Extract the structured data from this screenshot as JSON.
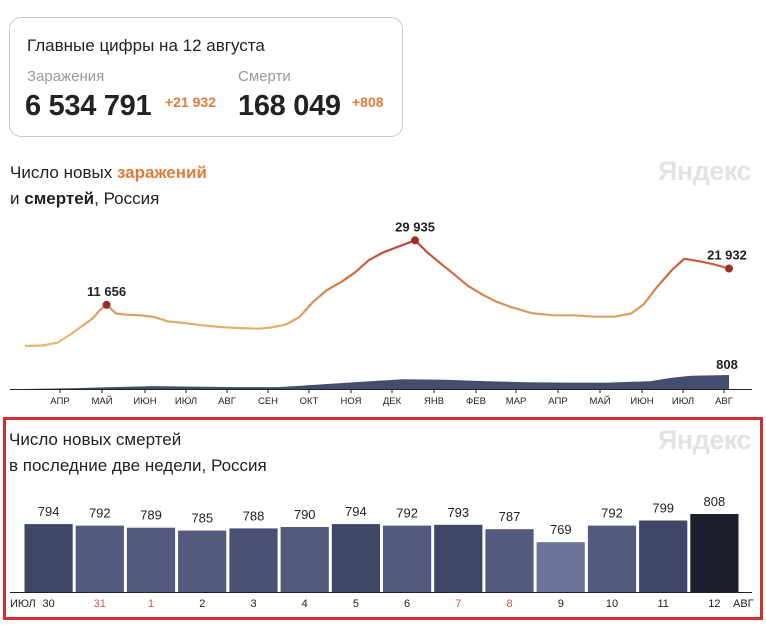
{
  "summary": {
    "title": "Главные цифры на 12 августа",
    "infections_label": "Заражения",
    "infections_value": "6 534 791",
    "infections_delta": "+21 932",
    "deaths_label": "Смерти",
    "deaths_value": "168 049",
    "deaths_delta": "+808"
  },
  "chart1": {
    "title_part1": "Число новых ",
    "title_highlight": "заражений",
    "title_part2": "и ",
    "title_bold": "смертей",
    "title_part3": ", Россия",
    "watermark": "Яндекс"
  },
  "chart2": {
    "title_line1": "Число новых смертей",
    "title_line2": "в последние две недели, Россия",
    "watermark": "Яндекс"
  },
  "colors": {
    "infections_low": "#e6b96e",
    "infections_high": "#c0392b",
    "deaths_area": "#2f3a5e",
    "highlight": "#e07b39",
    "weekend": "#d9534f"
  },
  "chart_data": [
    {
      "type": "line",
      "title": "Число новых заражений и смертей, Россия",
      "x_ticks": [
        "АПР",
        "МАЙ",
        "ИЮН",
        "ИЮЛ",
        "АВГ",
        "СЕН",
        "ОКТ",
        "НОЯ",
        "ДЕК",
        "ЯНВ",
        "ФЕВ",
        "МАР",
        "АПР",
        "МАЙ",
        "ИЮН",
        "ИЮЛ",
        "АВГ"
      ],
      "series": [
        {
          "name": "заражений",
          "points": [
            [
              "2020-03-12",
              0
            ],
            [
              "2020-03-25",
              150
            ],
            [
              "2020-04-05",
              950
            ],
            [
              "2020-04-15",
              3400
            ],
            [
              "2020-04-25",
              6200
            ],
            [
              "2020-05-01",
              7900
            ],
            [
              "2020-05-06",
              10100
            ],
            [
              "2020-05-11",
              11656
            ],
            [
              "2020-05-18",
              9200
            ],
            [
              "2020-05-25",
              8900
            ],
            [
              "2020-06-05",
              8700
            ],
            [
              "2020-06-15",
              8200
            ],
            [
              "2020-06-25",
              7000
            ],
            [
              "2020-07-05",
              6600
            ],
            [
              "2020-07-20",
              5900
            ],
            [
              "2020-08-01",
              5400
            ],
            [
              "2020-08-15",
              5100
            ],
            [
              "2020-08-31",
              4900
            ],
            [
              "2020-09-10",
              5300
            ],
            [
              "2020-09-20",
              6100
            ],
            [
              "2020-09-30",
              8200
            ],
            [
              "2020-10-10",
              12500
            ],
            [
              "2020-10-20",
              15800
            ],
            [
              "2020-10-31",
              18200
            ],
            [
              "2020-11-10",
              20900
            ],
            [
              "2020-11-20",
              24300
            ],
            [
              "2020-11-30",
              26400
            ],
            [
              "2020-12-10",
              27900
            ],
            [
              "2020-12-24",
              29935
            ],
            [
              "2021-01-02",
              26500
            ],
            [
              "2021-01-12",
              23300
            ],
            [
              "2021-01-22",
              20200
            ],
            [
              "2021-02-01",
              17000
            ],
            [
              "2021-02-11",
              14700
            ],
            [
              "2021-02-21",
              12700
            ],
            [
              "2021-03-05",
              11000
            ],
            [
              "2021-03-20",
              9300
            ],
            [
              "2021-04-05",
              8700
            ],
            [
              "2021-04-20",
              8700
            ],
            [
              "2021-05-05",
              8300
            ],
            [
              "2021-05-20",
              8300
            ],
            [
              "2021-06-01",
              9200
            ],
            [
              "2021-06-10",
              11700
            ],
            [
              "2021-06-20",
              16700
            ],
            [
              "2021-07-01",
              21500
            ],
            [
              "2021-07-10",
              24700
            ],
            [
              "2021-07-20",
              24100
            ],
            [
              "2021-07-31",
              23200
            ],
            [
              "2021-08-12",
              21932
            ]
          ],
          "labels": [
            {
              "date": "2020-05-11",
              "text": "11 656"
            },
            {
              "date": "2020-12-24",
              "text": "29 935"
            },
            {
              "date": "2021-08-12",
              "text": "21 932"
            }
          ]
        },
        {
          "name": "смертей",
          "points": [
            [
              "2020-03-12",
              0
            ],
            [
              "2020-04-15",
              40
            ],
            [
              "2020-05-15",
              110
            ],
            [
              "2020-06-15",
              170
            ],
            [
              "2020-07-15",
              140
            ],
            [
              "2020-08-15",
              110
            ],
            [
              "2020-09-15",
              110
            ],
            [
              "2020-10-15",
              260
            ],
            [
              "2020-11-15",
              420
            ],
            [
              "2020-12-15",
              560
            ],
            [
              "2021-01-15",
              530
            ],
            [
              "2021-02-15",
              450
            ],
            [
              "2021-03-15",
              390
            ],
            [
              "2021-04-15",
              370
            ],
            [
              "2021-05-15",
              370
            ],
            [
              "2021-06-15",
              450
            ],
            [
              "2021-07-01",
              650
            ],
            [
              "2021-07-15",
              760
            ],
            [
              "2021-08-12",
              808
            ]
          ],
          "labels": [
            {
              "date": "2021-08-12",
              "text": "808"
            }
          ]
        }
      ],
      "ylim": [
        0,
        32000
      ]
    },
    {
      "type": "bar",
      "title": "Число новых смертей в последние две недели, Россия",
      "month_left": "ИЮЛ",
      "month_right": "АВГ",
      "categories": [
        "30",
        "31",
        "1",
        "2",
        "3",
        "4",
        "5",
        "6",
        "7",
        "8",
        "9",
        "10",
        "11",
        "12"
      ],
      "weekend": [
        false,
        true,
        true,
        false,
        false,
        false,
        false,
        false,
        true,
        true,
        false,
        false,
        false,
        false
      ],
      "values": [
        794,
        792,
        789,
        785,
        788,
        790,
        794,
        792,
        793,
        787,
        769,
        792,
        799,
        808
      ],
      "value_labels": [
        "794",
        "792",
        "789",
        "785",
        "788",
        "790",
        "794",
        "792",
        "793",
        "787",
        "769",
        "792",
        "799",
        "808"
      ],
      "colors": [
        "#3f4666",
        "#545a7e",
        "#545a7e",
        "#545a7e",
        "#4a5074",
        "#545a7e",
        "#3f4666",
        "#545a7e",
        "#3f4666",
        "#545a7e",
        "#6c7299",
        "#545a7e",
        "#3f4666",
        "#1c1f2e"
      ]
    }
  ]
}
